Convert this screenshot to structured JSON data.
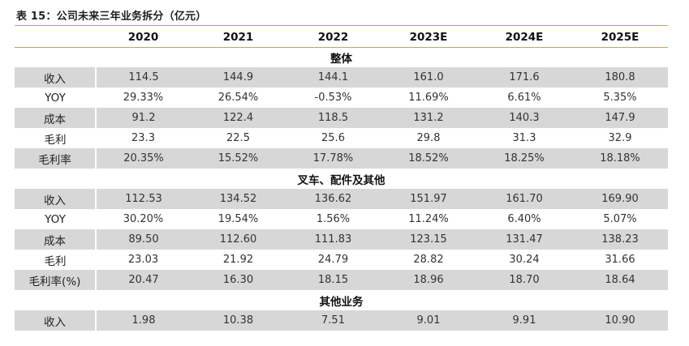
{
  "caption": "表 15：公司未来三年业务拆分（亿元）",
  "columns": [
    "",
    "2020",
    "2021",
    "2022",
    "2023E",
    "2024E",
    "2025E"
  ],
  "sections": [
    {
      "title": "整体",
      "rows": [
        {
          "label": "收入",
          "values": [
            "114.5",
            "144.9",
            "144.1",
            "161.0",
            "171.6",
            "180.8"
          ]
        },
        {
          "label": "YOY",
          "values": [
            "29.33%",
            "26.54%",
            "-0.53%",
            "11.69%",
            "6.61%",
            "5.35%"
          ]
        },
        {
          "label": "成本",
          "values": [
            "91.2",
            "122.4",
            "118.5",
            "131.2",
            "140.3",
            "147.9"
          ]
        },
        {
          "label": "毛利",
          "values": [
            "23.3",
            "22.5",
            "25.6",
            "29.8",
            "31.3",
            "32.9"
          ]
        },
        {
          "label": "毛利率",
          "values": [
            "20.35%",
            "15.52%",
            "17.78%",
            "18.52%",
            "18.25%",
            "18.18%"
          ]
        }
      ]
    },
    {
      "title": "叉车、配件及其他",
      "rows": [
        {
          "label": "收入",
          "values": [
            "112.53",
            "134.52",
            "136.62",
            "151.97",
            "161.70",
            "169.90"
          ]
        },
        {
          "label": "YOY",
          "values": [
            "30.20%",
            "19.54%",
            "1.56%",
            "11.24%",
            "6.40%",
            "5.07%"
          ]
        },
        {
          "label": "成本",
          "values": [
            "89.50",
            "112.60",
            "111.83",
            "123.15",
            "131.47",
            "138.23"
          ]
        },
        {
          "label": "毛利",
          "values": [
            "23.03",
            "21.92",
            "24.79",
            "28.82",
            "30.24",
            "31.66"
          ]
        },
        {
          "label": "毛利率(%)",
          "values": [
            "20.47",
            "16.30",
            "18.15",
            "18.96",
            "18.70",
            "18.64"
          ]
        }
      ]
    },
    {
      "title": "其他业务",
      "rows": [
        {
          "label": "收入",
          "values": [
            "1.98",
            "10.38",
            "7.51",
            "9.01",
            "9.91",
            "10.90"
          ]
        }
      ]
    }
  ]
}
